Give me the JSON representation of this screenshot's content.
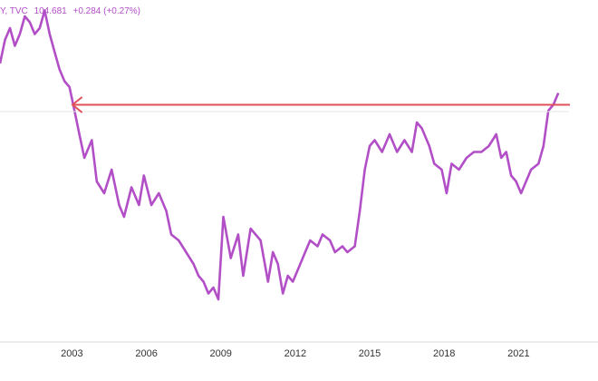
{
  "legend": {
    "symbol_fragment": "Y, TVC",
    "last_value": "104.681",
    "change": "+0.284 (+0.27%)"
  },
  "colors": {
    "line": "#b24fc7",
    "arrow": "#e0505a",
    "axis_text": "#333333"
  },
  "chart_data": {
    "type": "line",
    "x_tick_labels": [
      "2003",
      "2006",
      "2009",
      "2012",
      "2015",
      "2018",
      "2021"
    ],
    "xlim": [
      2000.1,
      2024.2
    ],
    "ylim": [
      68,
      122
    ],
    "grid": false,
    "series": [
      {
        "x": [
          2000.1,
          2000.3,
          2000.5,
          2000.7,
          2000.9,
          2001.1,
          2001.3,
          2001.5,
          2001.7,
          2001.9,
          2002.1,
          2002.3,
          2002.5,
          2002.7,
          2002.9,
          2003.1,
          2003.3,
          2003.5,
          2003.8,
          2004.0,
          2004.3,
          2004.6,
          2004.9,
          2005.1,
          2005.4,
          2005.7,
          2005.9,
          2006.2,
          2006.5,
          2006.8,
          2007.0,
          2007.3,
          2007.6,
          2007.9,
          2008.1,
          2008.3,
          2008.5,
          2008.7,
          2008.9,
          2009.1,
          2009.4,
          2009.7,
          2009.9,
          2010.2,
          2010.4,
          2010.6,
          2010.9,
          2011.1,
          2011.3,
          2011.5,
          2011.7,
          2011.9,
          2012.2,
          2012.4,
          2012.6,
          2012.9,
          2013.1,
          2013.4,
          2013.6,
          2013.9,
          2014.1,
          2014.4,
          2014.6,
          2014.8,
          2015.0,
          2015.2,
          2015.5,
          2015.8,
          2016.1,
          2016.4,
          2016.7,
          2016.9,
          2017.1,
          2017.4,
          2017.6,
          2017.9,
          2018.1,
          2018.3,
          2018.6,
          2018.9,
          2019.2,
          2019.5,
          2019.8,
          2020.1,
          2020.3,
          2020.5,
          2020.7,
          2020.9,
          2021.1,
          2021.3,
          2021.5,
          2021.8,
          2022.0,
          2022.2,
          2022.4,
          2022.6
        ],
        "y": [
          112,
          116,
          118,
          115,
          117,
          120,
          119,
          117,
          118,
          121,
          117,
          114,
          111,
          109,
          108,
          104,
          100,
          96,
          99,
          92,
          90,
          94,
          88,
          86,
          91,
          88,
          93,
          88,
          90,
          87,
          83,
          82,
          80,
          78,
          76,
          75,
          73,
          74,
          72,
          86,
          79,
          83,
          76,
          84,
          83,
          82,
          75,
          80,
          78,
          73,
          76,
          75,
          78,
          80,
          82,
          81,
          83,
          82,
          80,
          81,
          80,
          81,
          87,
          94,
          98,
          99,
          97,
          100,
          97,
          99,
          97,
          102,
          101,
          98,
          95,
          94,
          90,
          95,
          94,
          96,
          97,
          97,
          98,
          100,
          96,
          97,
          93,
          92,
          90,
          92,
          94,
          95,
          98,
          104,
          105,
          107
        ]
      }
    ],
    "reference_line": {
      "y": 105
    }
  }
}
